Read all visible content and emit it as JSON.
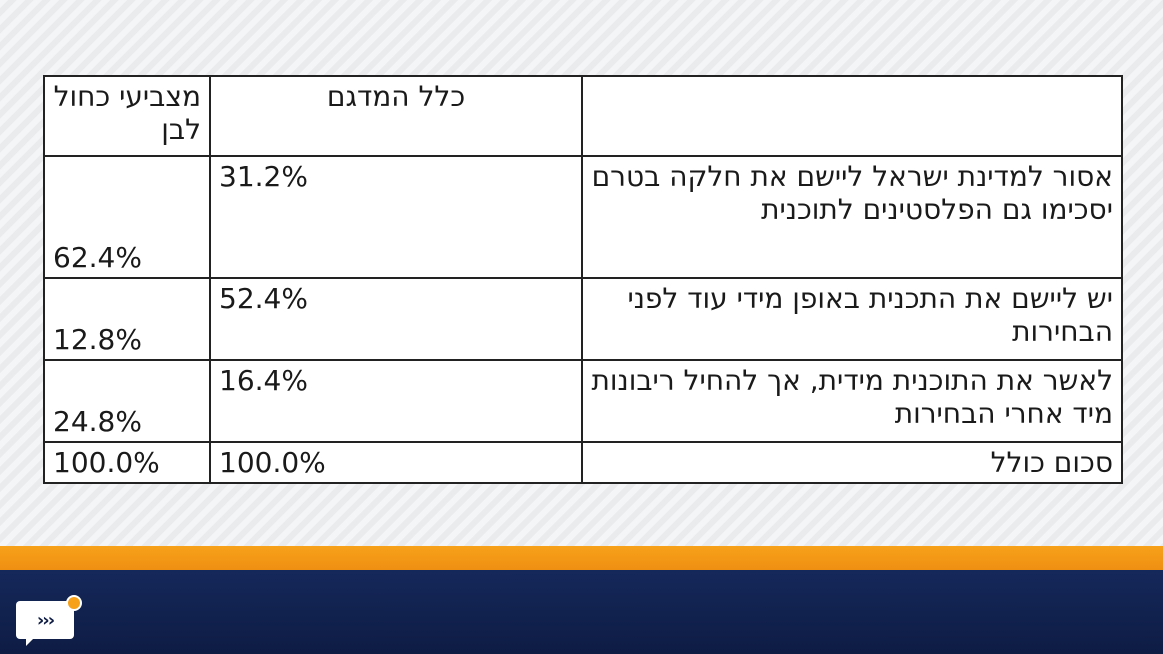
{
  "table": {
    "headers": {
      "question": "",
      "all_sample": "כלל המדגם",
      "blue_white": "מצביעי כחול לבן"
    },
    "rows": [
      {
        "question": "אסור למדינת ישראל ליישם את חלקה בטרם יסכימו גם הפלסטינים לתוכנית",
        "all_sample": "31.2%",
        "blue_white": "62.4%"
      },
      {
        "question": "יש ליישם את התכנית באופן מידי עוד לפני הבחירות",
        "all_sample": "52.4%",
        "blue_white": "12.8%"
      },
      {
        "question": "לאשר את התוכנית מידית, אך להחיל ריבונות מיד אחרי הבחירות",
        "all_sample": "16.4%",
        "blue_white": "24.8%"
      },
      {
        "question": "סכום כולל",
        "all_sample": "100.0%",
        "blue_white": "100.0%"
      }
    ]
  },
  "branding": {
    "logo_glyph": "›››",
    "colors": {
      "orange": "#f7a11a",
      "navy": "#0e1c44"
    }
  }
}
